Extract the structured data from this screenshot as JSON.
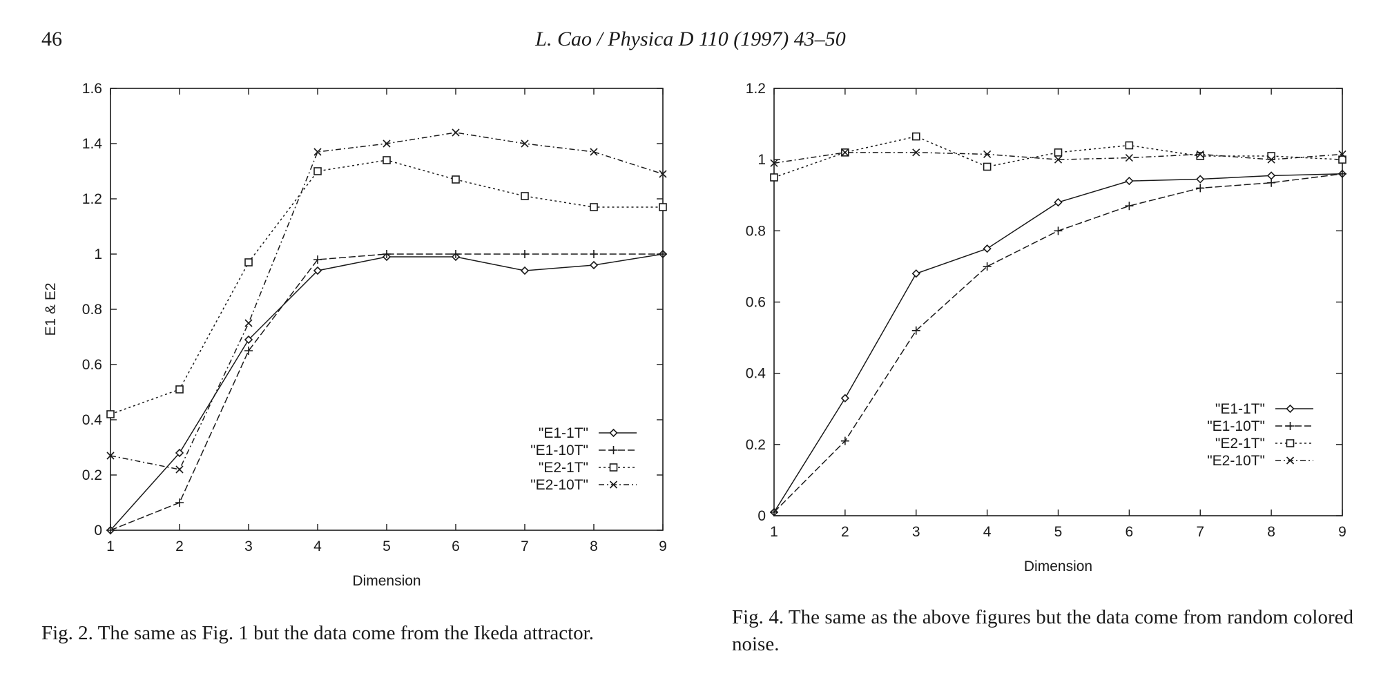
{
  "header": {
    "page_number": "46",
    "running_head": "L. Cao / Physica D 110 (1997) 43–50"
  },
  "chart_data": [
    {
      "type": "line",
      "title": "",
      "xlabel": "Dimension",
      "ylabel": "E1 & E2",
      "xlim": [
        1,
        9
      ],
      "ylim": [
        0,
        1.6
      ],
      "x_ticks": [
        1,
        2,
        3,
        4,
        5,
        6,
        7,
        8,
        9
      ],
      "y_ticks": [
        0,
        0.2,
        0.4,
        0.6,
        0.8,
        1,
        1.2,
        1.4,
        1.6
      ],
      "x": [
        1,
        2,
        3,
        4,
        5,
        6,
        7,
        8,
        9
      ],
      "legend_position": "bottom-right",
      "series": [
        {
          "name": "\"E1-1T\"",
          "marker": "diamond",
          "dash": "solid",
          "values": [
            0.0,
            0.28,
            0.69,
            0.94,
            0.99,
            0.99,
            0.94,
            0.96,
            1.0
          ]
        },
        {
          "name": "\"E1-10T\"",
          "marker": "plus",
          "dash": "longdash",
          "values": [
            0.0,
            0.1,
            0.65,
            0.98,
            1.0,
            1.0,
            1.0,
            1.0,
            1.0
          ]
        },
        {
          "name": "\"E2-1T\"",
          "marker": "square",
          "dash": "dotted",
          "values": [
            0.42,
            0.51,
            0.97,
            1.3,
            1.34,
            1.27,
            1.21,
            1.17,
            1.17
          ]
        },
        {
          "name": "\"E2-10T\"",
          "marker": "cross",
          "dash": "dashdot",
          "values": [
            0.27,
            0.22,
            0.75,
            1.37,
            1.4,
            1.44,
            1.4,
            1.37,
            1.29
          ]
        }
      ]
    },
    {
      "type": "line",
      "title": "",
      "xlabel": "Dimension",
      "ylabel": "",
      "xlim": [
        1,
        9
      ],
      "ylim": [
        0,
        1.2
      ],
      "x_ticks": [
        1,
        2,
        3,
        4,
        5,
        6,
        7,
        8,
        9
      ],
      "y_ticks": [
        0,
        0.2,
        0.4,
        0.6,
        0.8,
        1,
        1.2
      ],
      "x": [
        1,
        2,
        3,
        4,
        5,
        6,
        7,
        8,
        9
      ],
      "legend_position": "bottom-right",
      "series": [
        {
          "name": "\"E1-1T\"",
          "marker": "diamond",
          "dash": "solid",
          "values": [
            0.01,
            0.33,
            0.68,
            0.75,
            0.88,
            0.94,
            0.945,
            0.955,
            0.96
          ]
        },
        {
          "name": "\"E1-10T\"",
          "marker": "plus",
          "dash": "longdash",
          "values": [
            0.01,
            0.21,
            0.52,
            0.7,
            0.8,
            0.87,
            0.92,
            0.935,
            0.96
          ]
        },
        {
          "name": "\"E2-1T\"",
          "marker": "square",
          "dash": "dotted",
          "values": [
            0.95,
            1.02,
            1.065,
            0.98,
            1.02,
            1.04,
            1.01,
            1.01,
            1.0
          ]
        },
        {
          "name": "\"E2-10T\"",
          "marker": "cross",
          "dash": "dashdot",
          "values": [
            0.99,
            1.02,
            1.02,
            1.015,
            1.0,
            1.005,
            1.015,
            1.0,
            1.015
          ]
        }
      ]
    }
  ],
  "captions": [
    "Fig. 2. The same as Fig. 1 but the data come from the Ikeda attractor.",
    "Fig. 4. The same as the above figures but the data come from random colored noise."
  ]
}
